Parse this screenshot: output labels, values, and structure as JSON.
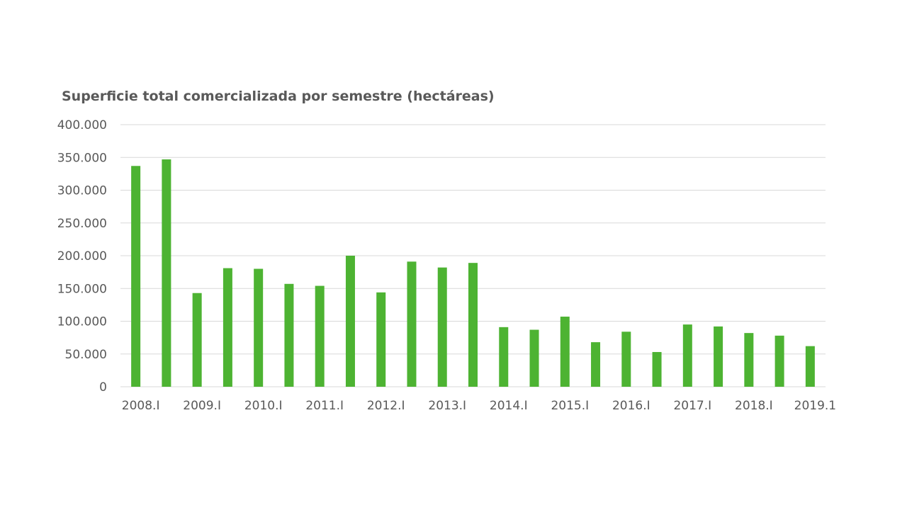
{
  "chart_data": {
    "type": "bar",
    "title": "Superficie total comercializada por semestre (hectáreas)",
    "xlabel": "",
    "ylabel": "",
    "ylim": [
      0,
      400000
    ],
    "yticks": [
      "0",
      "50.000",
      "100.000",
      "150.000",
      "200.000",
      "250.000",
      "300.000",
      "350.000",
      "400.000"
    ],
    "ytick_values": [
      0,
      50000,
      100000,
      150000,
      200000,
      250000,
      300000,
      350000,
      400000
    ],
    "xtick_labels": [
      "2008.I",
      "2009.I",
      "2010.I",
      "2011.I",
      "2012.I",
      "2013.I",
      "2014.I",
      "2015.I",
      "2016.I",
      "2017.I",
      "2018.I",
      "2019.1"
    ],
    "values": [
      337000,
      347000,
      143000,
      181000,
      180000,
      157000,
      154000,
      200000,
      144000,
      191000,
      182000,
      189000,
      91000,
      87000,
      107000,
      68000,
      84000,
      53000,
      95000,
      92000,
      82000,
      78000,
      62000
    ],
    "bar_color": "#4db332",
    "grid": true,
    "legend": "none"
  }
}
